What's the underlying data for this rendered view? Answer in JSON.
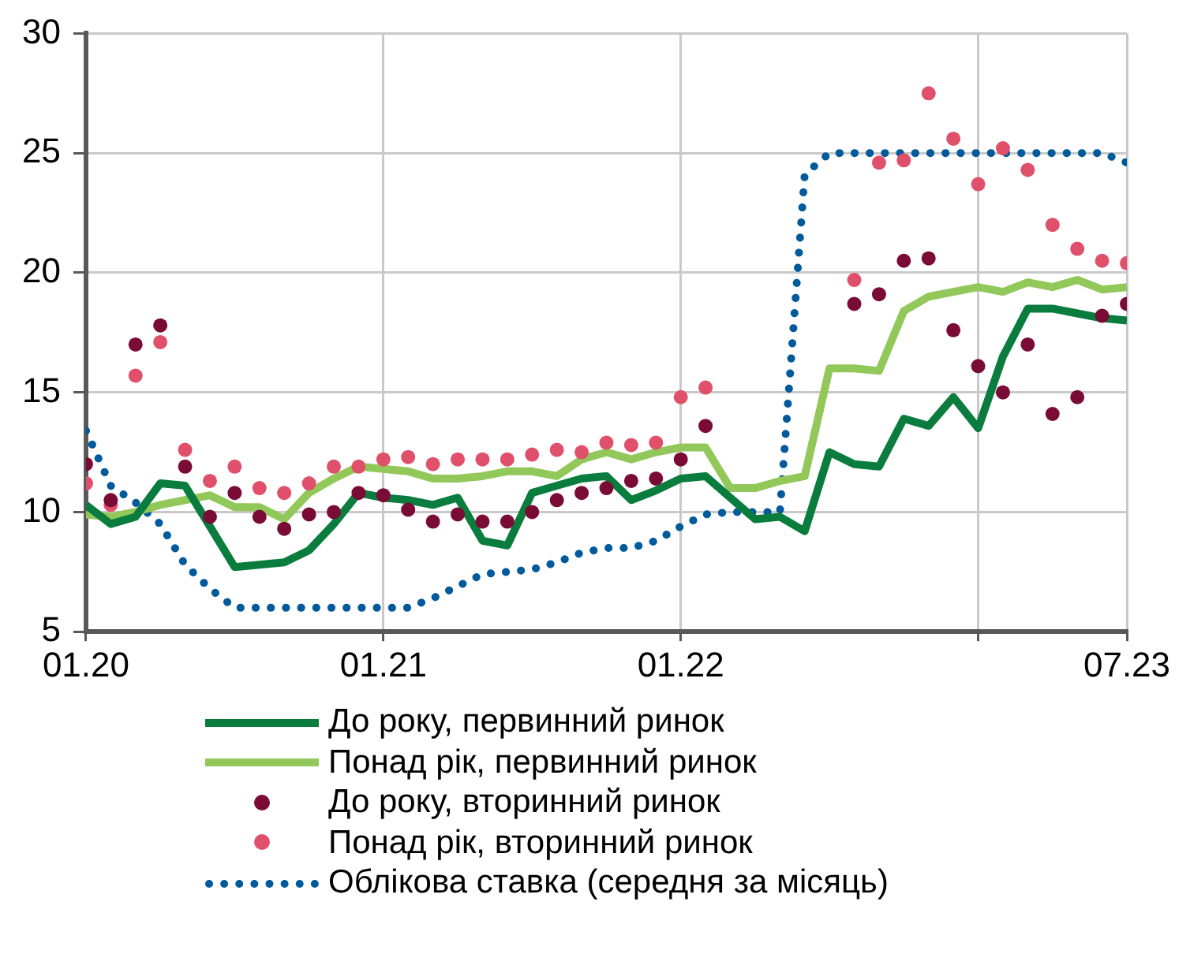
{
  "chart_data": {
    "type": "line",
    "x": [
      "2020-01",
      "2020-02",
      "2020-03",
      "2020-04",
      "2020-05",
      "2020-06",
      "2020-07",
      "2020-08",
      "2020-09",
      "2020-10",
      "2020-11",
      "2020-12",
      "2021-01",
      "2021-02",
      "2021-03",
      "2021-04",
      "2021-05",
      "2021-06",
      "2021-07",
      "2021-08",
      "2021-09",
      "2021-10",
      "2021-11",
      "2021-12",
      "2022-01",
      "2022-02",
      "2022-03",
      "2022-04",
      "2022-05",
      "2022-06",
      "2022-07",
      "2022-08",
      "2022-09",
      "2022-10",
      "2022-11",
      "2022-12",
      "2023-01",
      "2023-02",
      "2023-03",
      "2023-04",
      "2023-05",
      "2023-06",
      "2023-07"
    ],
    "xlim": [
      "2020-01",
      "2023-07"
    ],
    "xticks": [
      {
        "value": "2020-01",
        "label": "01.20"
      },
      {
        "value": "2021-01",
        "label": "01.21"
      },
      {
        "value": "2022-01",
        "label": "01.22"
      },
      {
        "value": "2023-01",
        "label": null
      },
      {
        "value": "2023-07",
        "label": "07.23"
      }
    ],
    "ylim": [
      5,
      30
    ],
    "yticks": [
      5,
      10,
      15,
      20,
      25,
      30
    ],
    "grid": true,
    "legend": "bottom",
    "series": [
      {
        "name": "До року, первинний ринок",
        "type": "line",
        "color": "#0a7d3e",
        "values": [
          10.3,
          9.5,
          9.8,
          11.2,
          11.1,
          9.4,
          7.7,
          7.8,
          7.9,
          8.4,
          9.5,
          10.8,
          10.6,
          10.5,
          10.3,
          10.6,
          8.8,
          8.6,
          10.8,
          11.1,
          11.4,
          11.5,
          10.5,
          10.9,
          11.4,
          11.5,
          10.6,
          9.7,
          9.8,
          9.2,
          12.5,
          12.0,
          11.9,
          13.9,
          13.6,
          14.8,
          13.5,
          16.5,
          18.5,
          18.5,
          18.3,
          18.1,
          18.0
        ]
      },
      {
        "name": "Понад рік, первинний ринок",
        "type": "line",
        "color": "#92c85a",
        "values": [
          9.9,
          9.8,
          10.0,
          10.3,
          10.5,
          10.7,
          10.2,
          10.2,
          9.7,
          10.8,
          11.4,
          11.9,
          11.8,
          11.7,
          11.4,
          11.4,
          11.5,
          11.7,
          11.7,
          11.5,
          12.2,
          12.5,
          12.2,
          12.5,
          12.7,
          12.7,
          11.0,
          11.0,
          11.3,
          11.5,
          16.0,
          16.0,
          15.9,
          18.4,
          19.0,
          19.2,
          19.4,
          19.2,
          19.6,
          19.4,
          19.7,
          19.3,
          19.4
        ]
      },
      {
        "name": "До року, вторинний ринок",
        "type": "scatter",
        "marker": "circle",
        "color": "#7a0b34",
        "values": [
          12.0,
          10.5,
          17.0,
          17.8,
          11.9,
          9.8,
          10.8,
          9.8,
          9.3,
          9.9,
          10.0,
          10.8,
          10.7,
          10.1,
          9.6,
          9.9,
          9.6,
          9.6,
          10.0,
          10.5,
          10.8,
          11.0,
          11.3,
          11.4,
          12.2,
          13.6,
          null,
          null,
          null,
          null,
          null,
          18.7,
          19.1,
          20.5,
          20.6,
          17.6,
          16.1,
          15.0,
          17.0,
          14.1,
          14.8,
          18.2,
          18.7
        ]
      },
      {
        "name": "Понад рік, вторинний ринок",
        "type": "scatter",
        "marker": "circle",
        "color": "#e0506a",
        "values": [
          11.2,
          10.3,
          15.7,
          17.1,
          12.6,
          11.3,
          11.9,
          11.0,
          10.8,
          11.2,
          11.9,
          11.9,
          12.2,
          12.3,
          12.0,
          12.2,
          12.2,
          12.2,
          12.4,
          12.6,
          12.5,
          12.9,
          12.8,
          12.9,
          14.8,
          15.2,
          null,
          null,
          null,
          null,
          null,
          19.7,
          24.6,
          24.7,
          27.5,
          25.6,
          23.7,
          25.2,
          24.3,
          22.0,
          21.0,
          20.5,
          20.4
        ]
      },
      {
        "name": "Облікова ставка (середня за місяць)",
        "type": "line",
        "line_style": "dotted",
        "color": "#005a9c",
        "values": [
          13.4,
          11.1,
          10.4,
          9.5,
          7.8,
          6.8,
          6.0,
          6.0,
          6.0,
          6.0,
          6.0,
          6.0,
          6.0,
          6.0,
          6.4,
          6.9,
          7.4,
          7.5,
          7.6,
          7.9,
          8.3,
          8.5,
          8.5,
          8.8,
          9.4,
          9.9,
          10.0,
          10.0,
          10.0,
          24.1,
          25,
          25,
          25,
          25,
          25,
          25,
          25,
          25,
          25,
          25,
          25,
          25,
          24.6
        ]
      }
    ]
  }
}
